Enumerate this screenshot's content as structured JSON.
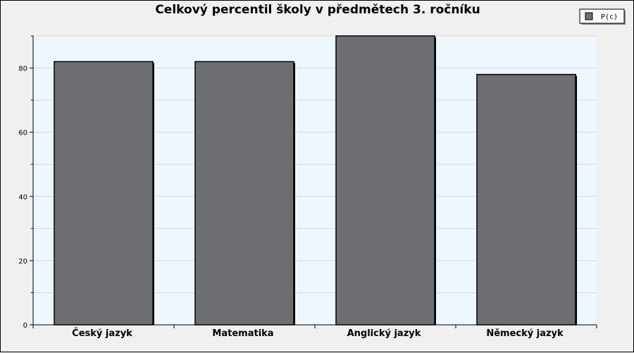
{
  "chart_data": {
    "type": "bar",
    "title": "Celkový percentil školy v předmětech 3. ročníku",
    "categories": [
      "Český jazyk",
      "Matematika",
      "Anglický jazyk",
      "Německý jazyk"
    ],
    "series": [
      {
        "name": "P(c)",
        "values": [
          82,
          82,
          90,
          78
        ],
        "color": "#6d6e72"
      }
    ],
    "yticks": [
      0,
      20,
      40,
      60,
      80
    ],
    "ylim": [
      0,
      90
    ],
    "xlabel": "",
    "ylabel": "",
    "grid": true,
    "legend_position": "top-right",
    "plot_background": "#eef6fe"
  }
}
